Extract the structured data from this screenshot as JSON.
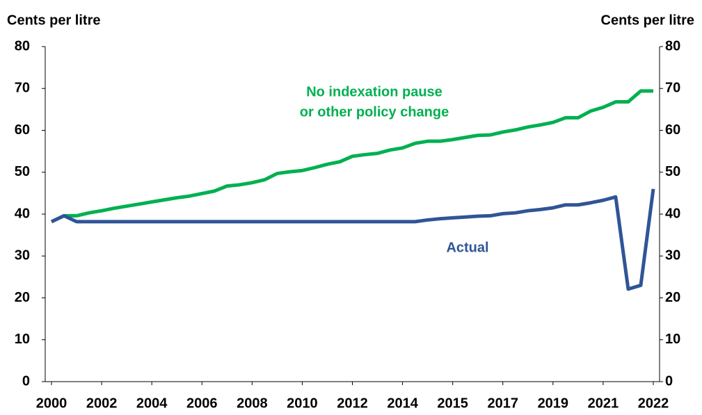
{
  "chart_data": {
    "type": "line",
    "ylabel": "Cents per litre",
    "y2label": "Cents per litre",
    "annotations": [
      "No indexation pause",
      "or other policy change",
      "Actual"
    ],
    "categories": [
      "2000",
      null,
      null,
      null,
      "2002",
      null,
      null,
      null,
      "2004",
      null,
      null,
      null,
      "2006",
      null,
      null,
      null,
      "2008",
      null,
      null,
      null,
      "2010",
      null,
      null,
      null,
      "2012",
      null,
      null,
      null,
      "2014",
      null,
      null,
      null,
      "2015",
      null,
      null,
      null,
      "2017",
      null,
      null,
      null,
      "2019",
      null,
      null,
      null,
      "2021",
      null,
      null,
      null,
      "2022"
    ],
    "series": [
      {
        "name": "No indexation pause or other policy change",
        "color": "#00b050",
        "values": [
          38.2,
          39.6,
          39.6,
          40.3,
          40.8,
          41.4,
          41.9,
          42.4,
          42.9,
          43.4,
          43.9,
          44.3,
          44.9,
          45.5,
          46.7,
          47.0,
          47.5,
          48.2,
          49.7,
          50.1,
          50.4,
          51.1,
          51.9,
          52.5,
          53.8,
          54.2,
          54.5,
          55.3,
          55.8,
          56.9,
          57.4,
          57.4,
          57.8,
          58.3,
          58.8,
          58.9,
          59.6,
          60.1,
          60.8,
          61.3,
          61.9,
          63.0,
          63.0,
          64.6,
          65.5,
          66.8,
          66.8,
          69.4,
          69.4
        ]
      },
      {
        "name": "Actual",
        "color": "#2f5597",
        "values": [
          38.2,
          39.6,
          38.2,
          38.2,
          38.2,
          38.2,
          38.2,
          38.2,
          38.2,
          38.2,
          38.2,
          38.2,
          38.2,
          38.2,
          38.2,
          38.2,
          38.2,
          38.2,
          38.2,
          38.2,
          38.2,
          38.2,
          38.2,
          38.2,
          38.2,
          38.2,
          38.2,
          38.2,
          38.2,
          38.2,
          38.6,
          38.9,
          39.1,
          39.3,
          39.5,
          39.6,
          40.1,
          40.3,
          40.8,
          41.1,
          41.5,
          42.2,
          42.2,
          42.7,
          43.3,
          44.1,
          22.1,
          23.0,
          46.0
        ]
      }
    ],
    "ylim": [
      0,
      80
    ],
    "yticks": [
      0,
      10,
      20,
      30,
      40,
      50,
      60,
      70,
      80
    ],
    "y2lim": [
      0,
      80
    ],
    "y2ticks": [
      0,
      10,
      20,
      30,
      40,
      50,
      60,
      70,
      80
    ],
    "grid": false
  }
}
